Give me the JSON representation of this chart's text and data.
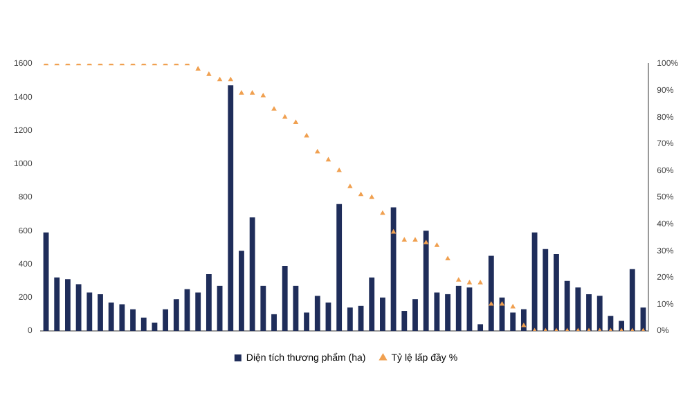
{
  "chart_data": {
    "type": "bar",
    "categories": [
      null,
      null,
      null,
      null,
      null,
      null,
      null,
      null,
      null,
      null,
      null,
      null,
      null,
      null,
      null,
      null,
      null,
      null,
      null,
      null,
      null,
      null,
      null,
      null,
      null,
      null,
      null,
      null,
      null,
      null,
      null,
      null,
      null,
      null,
      null,
      null,
      null,
      null,
      null,
      null,
      null,
      null,
      null,
      null,
      null,
      null,
      null,
      null,
      null,
      null,
      null,
      null,
      null,
      null,
      null,
      null
    ],
    "series": [
      {
        "name": "Diện tích thương phẩm (ha)",
        "color": "#1f2d5a",
        "values": [
          590,
          320,
          310,
          280,
          230,
          220,
          170,
          160,
          130,
          80,
          50,
          130,
          190,
          250,
          230,
          340,
          270,
          1470,
          480,
          680,
          270,
          100,
          390,
          270,
          110,
          210,
          170,
          760,
          140,
          150,
          320,
          200,
          740,
          120,
          190,
          600,
          230,
          220,
          270,
          260,
          40,
          450,
          200,
          110,
          130,
          590,
          490,
          460,
          300,
          260,
          220,
          210,
          90,
          60,
          370,
          140
        ]
      },
      {
        "name": "Tỷ lệ lấp đầy %",
        "type": "scatter",
        "axis": "y2",
        "color": "#f0a050",
        "marker": "triangle",
        "values": [
          100,
          100,
          100,
          100,
          100,
          100,
          100,
          100,
          100,
          100,
          100,
          100,
          100,
          100,
          98,
          96,
          94,
          94,
          89,
          89,
          88,
          83,
          80,
          78,
          73,
          67,
          64,
          60,
          54,
          51,
          50,
          44,
          37,
          34,
          34,
          33,
          32,
          27,
          19,
          18,
          18,
          10,
          10,
          9,
          2,
          0,
          0,
          0,
          0,
          0,
          0,
          0,
          0,
          0,
          0,
          0
        ]
      }
    ],
    "ylim": [
      0,
      1600
    ],
    "yticks": [
      0,
      200,
      400,
      600,
      800,
      1000,
      1200,
      1400,
      1600
    ],
    "y2lim": [
      0,
      100
    ],
    "y2ticks": [
      {
        "value": 0,
        "label": "0%"
      },
      {
        "value": 10,
        "label": "10%"
      },
      {
        "value": 20,
        "label": "20%"
      },
      {
        "value": 30,
        "label": "30%"
      },
      {
        "value": 40,
        "label": "40%"
      },
      {
        "value": 50,
        "label": "50%"
      },
      {
        "value": 60,
        "label": "60%"
      },
      {
        "value": 70,
        "label": "70%"
      },
      {
        "value": 80,
        "label": "80%"
      },
      {
        "value": 90,
        "label": "90%"
      },
      {
        "value": 100,
        "label": "100%"
      }
    ],
    "grid": false,
    "legend": "bottom"
  }
}
